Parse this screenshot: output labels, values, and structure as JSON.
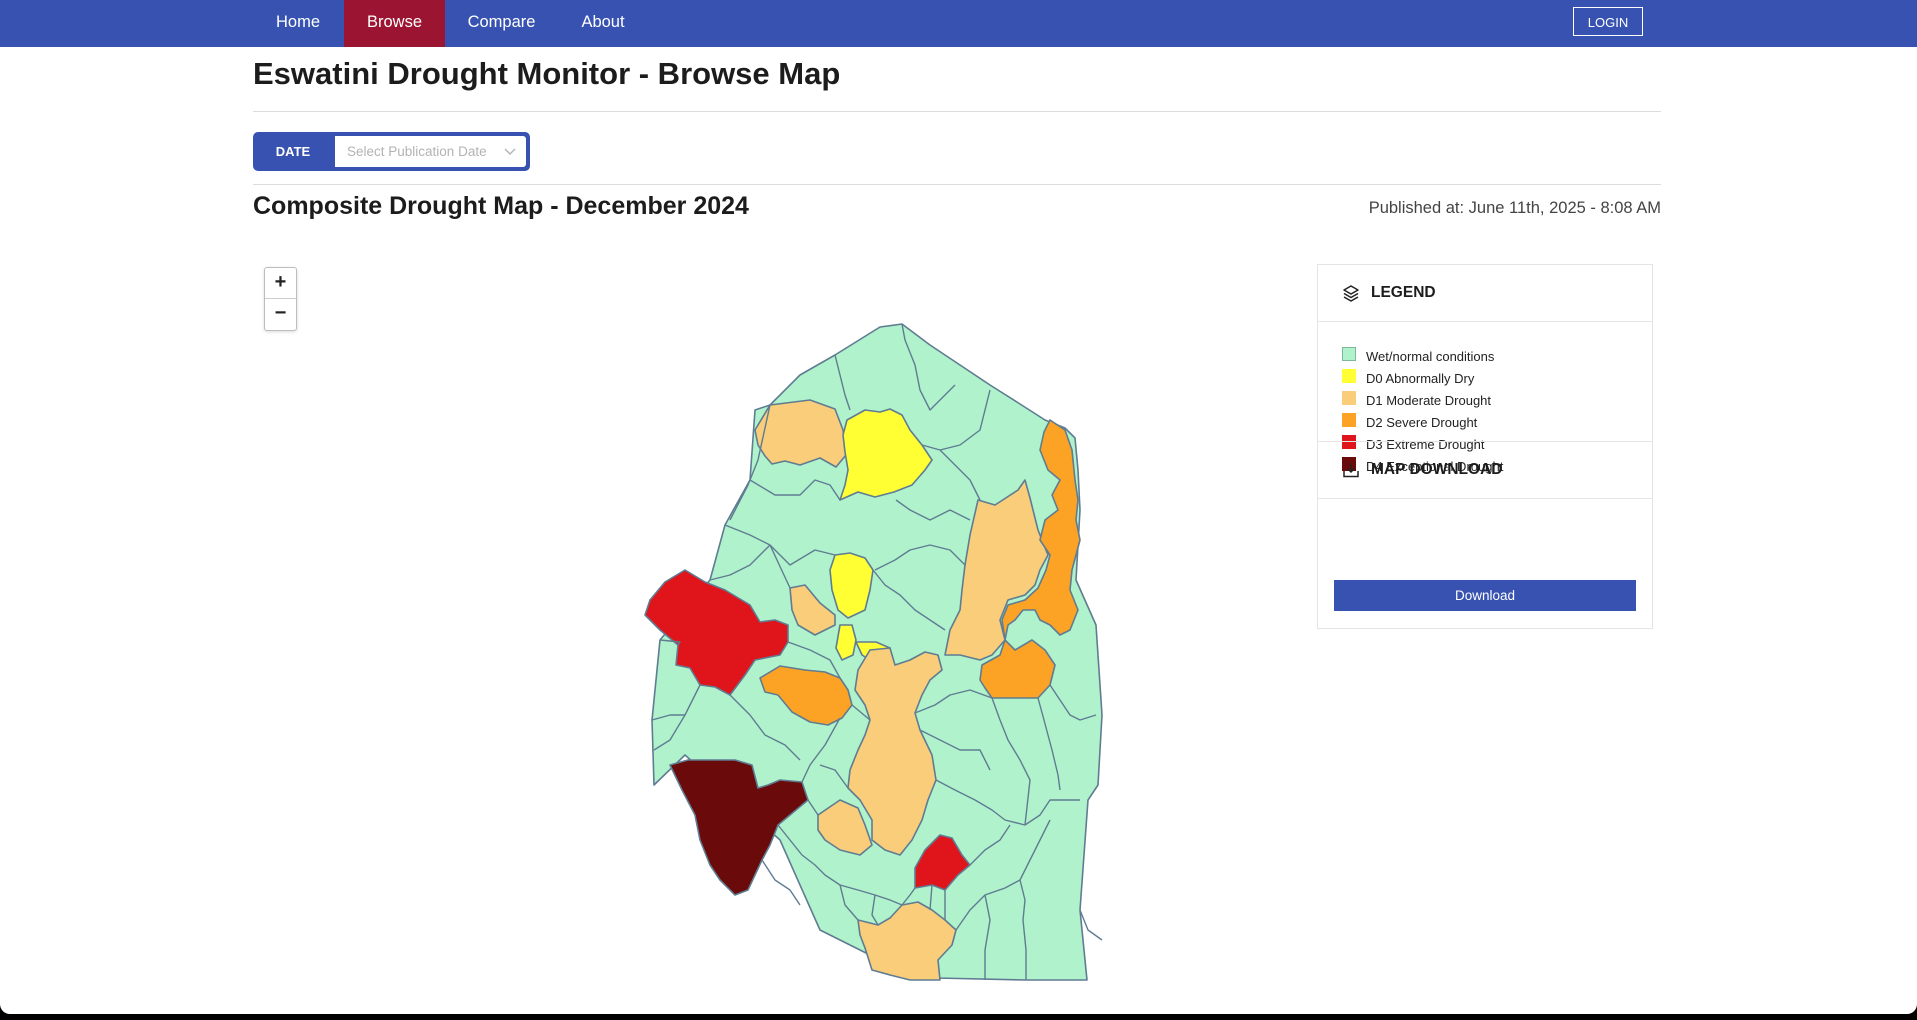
{
  "nav": {
    "items": [
      {
        "label": "Home",
        "active": false
      },
      {
        "label": "Browse",
        "active": true
      },
      {
        "label": "Compare",
        "active": false
      },
      {
        "label": "About",
        "active": false
      }
    ],
    "login_label": "LOGIN"
  },
  "page_title": "Eswatini Drought Monitor - Browse Map",
  "date_filter": {
    "label": "DATE",
    "placeholder": "Select Publication Date"
  },
  "map_title": "Composite Drought Map - December 2024",
  "published": "Published at: June 11th, 2025 - 8:08 AM",
  "zoom": {
    "in": "+",
    "out": "−"
  },
  "legend": {
    "title": "LEGEND",
    "items": [
      {
        "label": "Wet/normal conditions",
        "color": "#b0f2cc"
      },
      {
        "label": "D0 Abnormally Dry",
        "color": "#ffff33"
      },
      {
        "label": "D1 Moderate Drought",
        "color": "#f9cd7a"
      },
      {
        "label": "D2 Severe Drought",
        "color": "#fca326"
      },
      {
        "label": "D3 Extreme Drought",
        "color": "#e0141b"
      },
      {
        "label": "D4 Exceptional Drought",
        "color": "#6a0a0a"
      }
    ]
  },
  "download": {
    "title": "MAP DOWNLOAD",
    "button_label": "Download"
  },
  "colors": {
    "nav": "#3752b0",
    "active_nav": "#9b1431",
    "border": "#5f7c92"
  }
}
